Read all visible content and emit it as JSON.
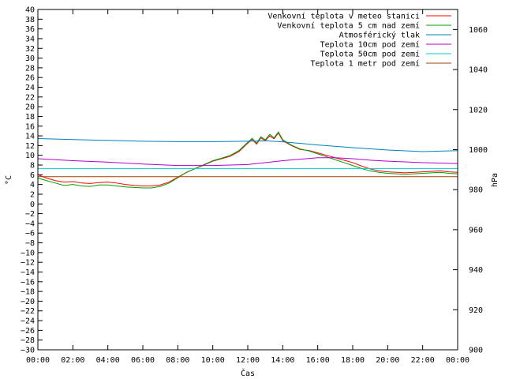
{
  "chart_data": {
    "type": "line",
    "xlabel": "Čas",
    "ylabel_left": "°C",
    "ylabel_right": "hPa",
    "x_ticks": [
      "00:00",
      "02:00",
      "04:00",
      "06:00",
      "08:00",
      "10:00",
      "12:00",
      "14:00",
      "16:00",
      "18:00",
      "20:00",
      "22:00",
      "00:00"
    ],
    "x_range": [
      0,
      24
    ],
    "ylim_left": [
      -30,
      40
    ],
    "y_tick_step_left": 2,
    "ylim_right": [
      900,
      1070
    ],
    "y_ticks_right": [
      900,
      920,
      940,
      960,
      980,
      1000,
      1020,
      1040,
      1060
    ],
    "grid": false,
    "legend_position": "top-right",
    "series": [
      {
        "name": "Venkovní teplota v meteo stanici",
        "color": "#ff0000",
        "axis": "left",
        "x": [
          0,
          0.5,
          1,
          1.5,
          2,
          2.5,
          3,
          3.5,
          4,
          4.5,
          5,
          5.5,
          6,
          6.5,
          7,
          7.5,
          8,
          8.5,
          9,
          9.5,
          10,
          10.5,
          11,
          11.5,
          12,
          12.25,
          12.5,
          12.75,
          13,
          13.25,
          13.5,
          13.75,
          14,
          14.5,
          15,
          15.5,
          16,
          16.5,
          17,
          17.5,
          18,
          18.5,
          19,
          19.5,
          20,
          20.5,
          21,
          21.5,
          22,
          22.5,
          23,
          23.5,
          24
        ],
        "values": [
          6.0,
          5.3,
          4.8,
          4.5,
          4.6,
          4.3,
          4.2,
          4.4,
          4.5,
          4.3,
          4.0,
          3.8,
          3.7,
          3.7,
          3.9,
          4.5,
          5.5,
          6.5,
          7.3,
          8.0,
          8.8,
          9.3,
          9.8,
          10.8,
          12.5,
          13.3,
          12.3,
          13.6,
          13.0,
          14.0,
          13.4,
          14.6,
          13.0,
          12.0,
          11.2,
          11.0,
          10.5,
          10.0,
          9.5,
          9.0,
          8.5,
          7.8,
          7.2,
          6.8,
          6.6,
          6.5,
          6.4,
          6.5,
          6.6,
          6.7,
          6.8,
          6.6,
          6.5
        ]
      },
      {
        "name": "Venkovní teplota 5 cm nad zemí",
        "color": "#00a000",
        "axis": "left",
        "x": [
          0,
          0.5,
          1,
          1.5,
          2,
          2.5,
          3,
          3.5,
          4,
          4.5,
          5,
          5.5,
          6,
          6.5,
          7,
          7.5,
          8,
          8.5,
          9,
          9.5,
          10,
          10.5,
          11,
          11.5,
          12,
          12.25,
          12.5,
          12.75,
          13,
          13.25,
          13.5,
          13.75,
          14,
          14.5,
          15,
          15.5,
          16,
          16.5,
          17,
          17.5,
          18,
          18.5,
          19,
          19.5,
          20,
          20.5,
          21,
          21.5,
          22,
          22.5,
          23,
          23.5,
          24
        ],
        "values": [
          5.3,
          4.8,
          4.3,
          3.8,
          4.0,
          3.7,
          3.6,
          3.9,
          3.9,
          3.7,
          3.5,
          3.4,
          3.3,
          3.3,
          3.6,
          4.3,
          5.4,
          6.5,
          7.3,
          8.1,
          8.9,
          9.4,
          10.0,
          11.0,
          12.7,
          13.5,
          12.5,
          13.8,
          13.2,
          14.3,
          13.6,
          14.8,
          13.2,
          12.1,
          11.3,
          10.9,
          10.3,
          9.7,
          9.1,
          8.5,
          7.9,
          7.3,
          6.8,
          6.5,
          6.3,
          6.2,
          6.1,
          6.2,
          6.3,
          6.4,
          6.5,
          6.3,
          6.2
        ]
      },
      {
        "name": "Atmosférický tlak",
        "color": "#0080c0",
        "axis": "right",
        "x": [
          0,
          2,
          4,
          6,
          8,
          10,
          12,
          13,
          14,
          16,
          18,
          20,
          22,
          24
        ],
        "values": [
          1005.5,
          1005.0,
          1004.6,
          1004.2,
          1004.0,
          1004.0,
          1004.2,
          1004.4,
          1003.9,
          1002.3,
          1001.0,
          999.8,
          999.0,
          999.5
        ]
      },
      {
        "name": "Teplota 10cm pod zemí",
        "color": "#b000d0",
        "axis": "left",
        "x": [
          0,
          2,
          4,
          6,
          8,
          10,
          12,
          13,
          14,
          15,
          16,
          17,
          18,
          19,
          20,
          22,
          24
        ],
        "values": [
          9.3,
          8.9,
          8.6,
          8.2,
          7.9,
          7.9,
          8.1,
          8.5,
          8.9,
          9.2,
          9.5,
          9.5,
          9.3,
          9.0,
          8.8,
          8.5,
          8.3
        ]
      },
      {
        "name": "Teplota 50cm pod zemí",
        "color": "#00d0d0",
        "axis": "left",
        "x": [
          0,
          4,
          8,
          12,
          16,
          20,
          24
        ],
        "values": [
          7.3,
          7.3,
          7.3,
          7.3,
          7.3,
          7.3,
          7.3
        ]
      },
      {
        "name": "Teplota 1 metr pod zemí",
        "color": "#a04000",
        "axis": "left",
        "x": [
          0,
          6,
          12,
          18,
          24
        ],
        "values": [
          5.6,
          5.6,
          5.6,
          5.6,
          5.6
        ]
      }
    ]
  }
}
